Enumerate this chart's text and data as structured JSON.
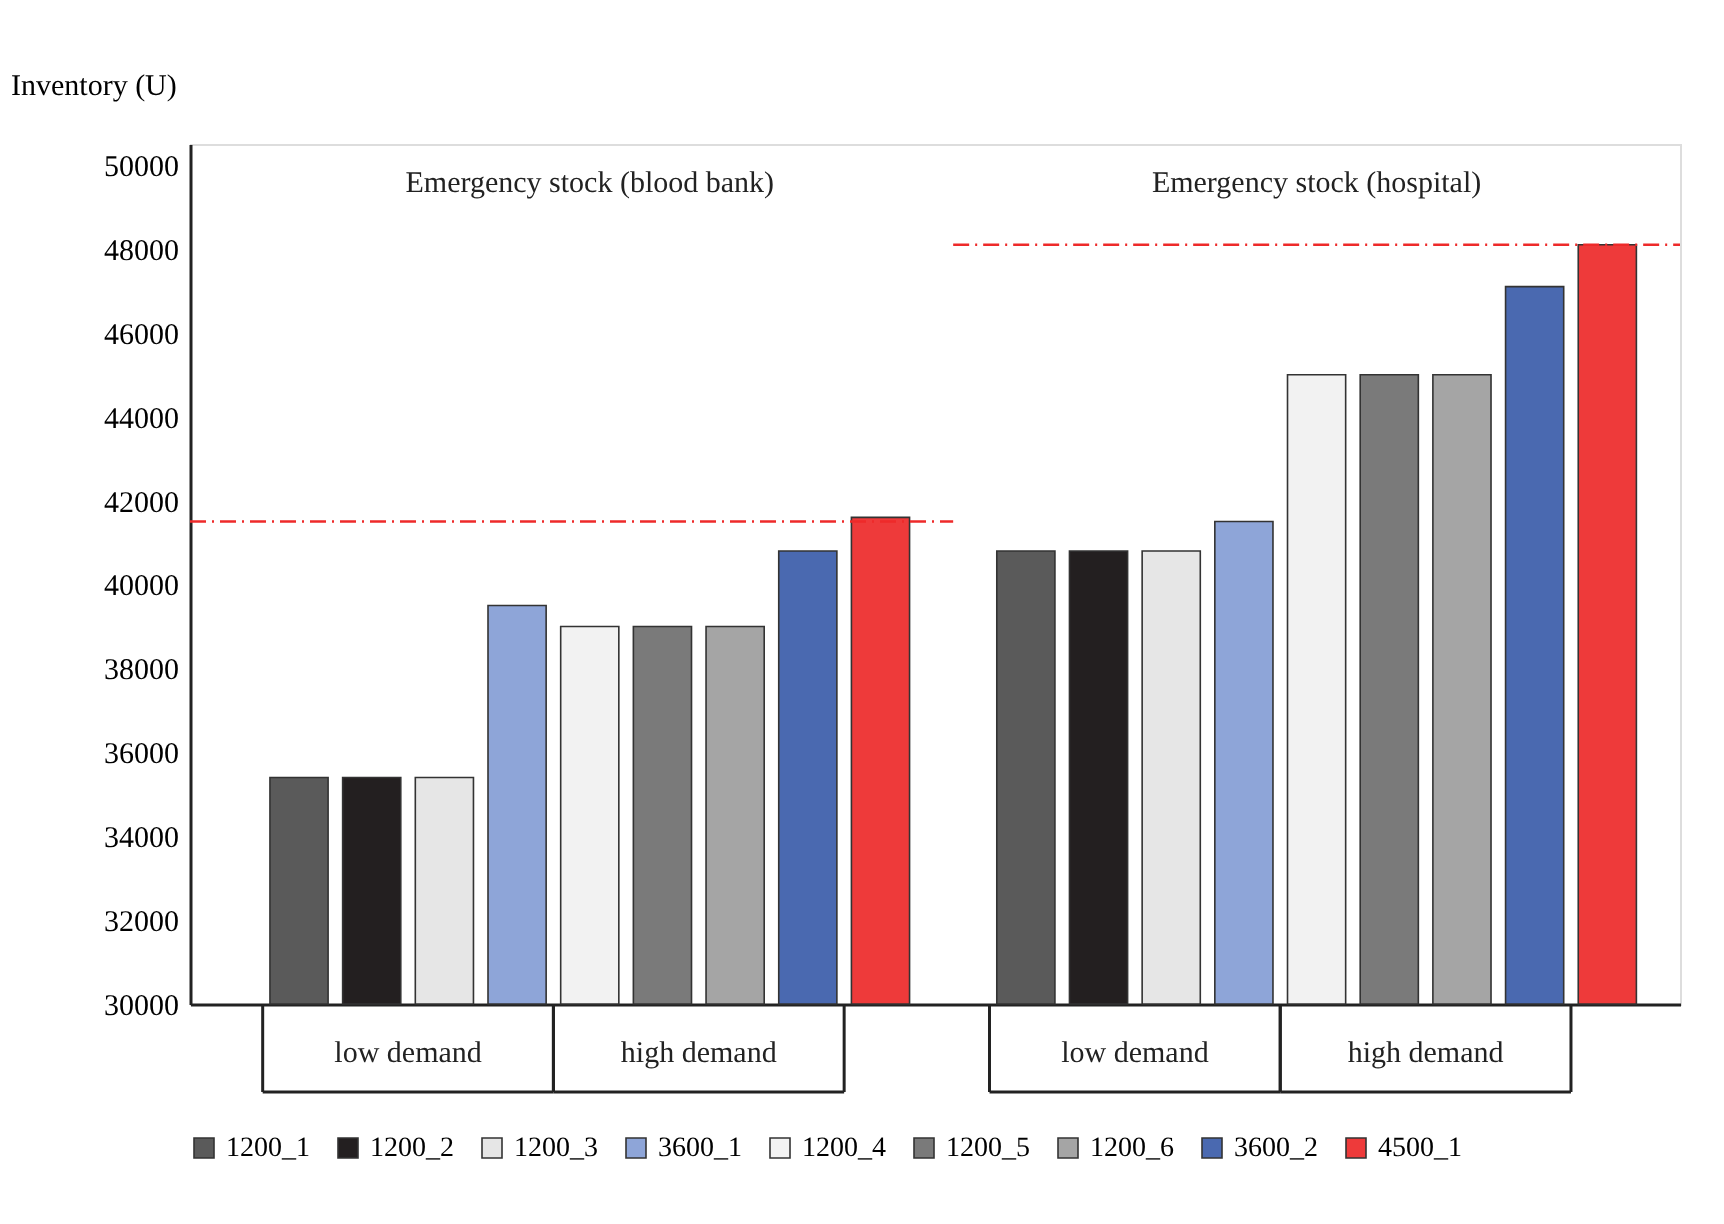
{
  "chart_data": {
    "type": "bar",
    "ylabel": "Inventory (U)",
    "categories": [
      "Emergency stock (blood bank)",
      "Emergency stock (hospital)"
    ],
    "series": [
      {
        "name": "1200_1",
        "color": "#5a5a5a",
        "values": [
          35400,
          40800
        ]
      },
      {
        "name": "1200_2",
        "color": "#231f20",
        "values": [
          35400,
          40800
        ]
      },
      {
        "name": "1200_3",
        "color": "#e6e6e6",
        "values": [
          35400,
          40800
        ]
      },
      {
        "name": "3600_1",
        "color": "#8ea5d8",
        "values": [
          39500,
          41500
        ]
      },
      {
        "name": "1200_4",
        "color": "#f2f2f2",
        "values": [
          39000,
          45000
        ]
      },
      {
        "name": "1200_5",
        "color": "#7a7a7a",
        "values": [
          39000,
          45000
        ]
      },
      {
        "name": "1200_6",
        "color": "#a5a5a5",
        "values": [
          39000,
          45000
        ]
      },
      {
        "name": "3600_2",
        "color": "#4a69b0",
        "values": [
          40800,
          47100
        ]
      },
      {
        "name": "4500_1",
        "color": "#ee3a3a",
        "values": [
          41600,
          48100
        ]
      }
    ],
    "ylim": [
      30000,
      50500
    ],
    "yticks": [
      30000,
      32000,
      34000,
      36000,
      38000,
      40000,
      42000,
      44000,
      46000,
      48000,
      50000
    ],
    "ref_lines": [
      {
        "axis": "y",
        "value": 41500,
        "color": "#ee2a2a",
        "line_style": "dashdot"
      },
      {
        "axis": "y",
        "value": 48100,
        "color": "#ee2a2a",
        "line_style": "dashdot"
      }
    ],
    "annotations": [
      "low demand",
      "high demand",
      "low demand",
      "high demand"
    ],
    "grid": false,
    "legend": "bottom"
  }
}
